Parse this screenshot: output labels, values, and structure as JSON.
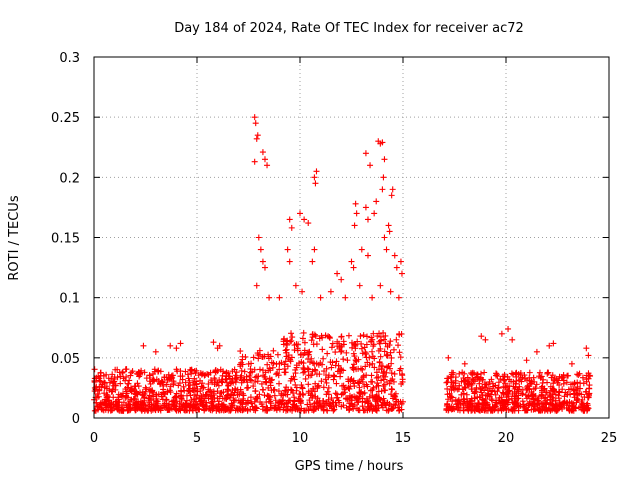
{
  "chart_data": {
    "type": "scatter",
    "title": "Day 184 of 2024, Rate Of TEC Index for receiver ac72",
    "xlabel": "GPS time / hours",
    "ylabel": "ROTI / TECUs",
    "xlim": [
      0,
      25
    ],
    "ylim": [
      0,
      0.3
    ],
    "x_ticks": [
      0,
      5,
      10,
      15,
      20,
      25
    ],
    "x_tick_labels": [
      "0",
      "5",
      "10",
      "15",
      "20",
      "25"
    ],
    "y_ticks": [
      0,
      0.05,
      0.1,
      0.15,
      0.2,
      0.25,
      0.3
    ],
    "y_tick_labels": [
      "0",
      "0.05",
      "0.1",
      "0.15",
      "0.2",
      "0.25",
      "0.3"
    ],
    "grid": true,
    "marker": "+",
    "marker_color": "#ff0000",
    "series": [
      {
        "name": "ROTI",
        "color": "#ff0000",
        "note": "dense band of ~0.01-0.04 from 0-15 h and 17-24 h, spikes listed as points",
        "points": [
          [
            7.8,
            0.25
          ],
          [
            7.85,
            0.245
          ],
          [
            7.9,
            0.232
          ],
          [
            7.95,
            0.235
          ],
          [
            7.8,
            0.213
          ],
          [
            8.2,
            0.221
          ],
          [
            8.3,
            0.215
          ],
          [
            8.4,
            0.21
          ],
          [
            10.8,
            0.205
          ],
          [
            10.75,
            0.195
          ],
          [
            10.7,
            0.2
          ],
          [
            13.2,
            0.22
          ],
          [
            13.4,
            0.21
          ],
          [
            13.8,
            0.23
          ],
          [
            13.9,
            0.228
          ],
          [
            14.0,
            0.229
          ],
          [
            14.1,
            0.215
          ],
          [
            14.05,
            0.2
          ],
          [
            14.0,
            0.19
          ],
          [
            14.5,
            0.19
          ],
          [
            14.45,
            0.185
          ],
          [
            9.5,
            0.165
          ],
          [
            9.6,
            0.158
          ],
          [
            10.0,
            0.17
          ],
          [
            10.2,
            0.165
          ],
          [
            10.4,
            0.162
          ],
          [
            12.7,
            0.178
          ],
          [
            12.75,
            0.17
          ],
          [
            12.65,
            0.16
          ],
          [
            13.2,
            0.175
          ],
          [
            13.3,
            0.165
          ],
          [
            13.6,
            0.17
          ],
          [
            13.7,
            0.18
          ],
          [
            14.3,
            0.16
          ],
          [
            14.35,
            0.155
          ],
          [
            14.1,
            0.15
          ],
          [
            8.0,
            0.15
          ],
          [
            8.1,
            0.14
          ],
          [
            8.2,
            0.13
          ],
          [
            8.3,
            0.125
          ],
          [
            9.4,
            0.14
          ],
          [
            9.5,
            0.13
          ],
          [
            10.6,
            0.13
          ],
          [
            10.7,
            0.14
          ],
          [
            11.8,
            0.12
          ],
          [
            12.0,
            0.115
          ],
          [
            12.5,
            0.13
          ],
          [
            12.6,
            0.125
          ],
          [
            13.0,
            0.14
          ],
          [
            13.3,
            0.135
          ],
          [
            14.2,
            0.14
          ],
          [
            14.6,
            0.135
          ],
          [
            14.7,
            0.125
          ],
          [
            14.9,
            0.13
          ],
          [
            14.95,
            0.12
          ],
          [
            7.9,
            0.11
          ],
          [
            8.5,
            0.1
          ],
          [
            9.0,
            0.1
          ],
          [
            9.8,
            0.11
          ],
          [
            10.1,
            0.105
          ],
          [
            11.0,
            0.1
          ],
          [
            11.5,
            0.105
          ],
          [
            12.2,
            0.1
          ],
          [
            12.9,
            0.11
          ],
          [
            13.5,
            0.1
          ],
          [
            13.9,
            0.11
          ],
          [
            14.4,
            0.105
          ],
          [
            14.8,
            0.1
          ],
          [
            2.4,
            0.06
          ],
          [
            3.0,
            0.055
          ],
          [
            3.7,
            0.06
          ],
          [
            4.0,
            0.058
          ],
          [
            4.2,
            0.062
          ],
          [
            5.8,
            0.063
          ],
          [
            6.0,
            0.058
          ],
          [
            6.1,
            0.06
          ],
          [
            17.2,
            0.05
          ],
          [
            18.8,
            0.068
          ],
          [
            19.0,
            0.065
          ],
          [
            19.8,
            0.07
          ],
          [
            20.1,
            0.074
          ],
          [
            20.3,
            0.065
          ],
          [
            21.5,
            0.055
          ],
          [
            22.1,
            0.06
          ],
          [
            22.3,
            0.062
          ],
          [
            23.9,
            0.058
          ],
          [
            24.0,
            0.052
          ],
          [
            23.2,
            0.045
          ],
          [
            18.0,
            0.045
          ],
          [
            21.0,
            0.048
          ]
        ]
      }
    ]
  }
}
